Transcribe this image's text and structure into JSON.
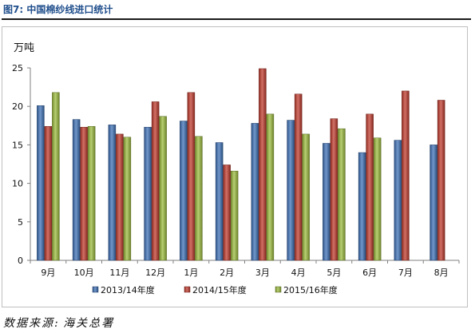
{
  "figure": {
    "title": "图7: 中国棉纱线进口统计",
    "source_label": "数据来源:",
    "source_value": "海关总署"
  },
  "chart_data": {
    "type": "bar",
    "title": "",
    "ylabel": "万吨",
    "xlabel": "",
    "ylim": [
      0,
      25
    ],
    "yticks": [
      0,
      5,
      10,
      15,
      20,
      25
    ],
    "grid": false,
    "legend_position": "bottom",
    "categories": [
      "9月",
      "10月",
      "11月",
      "12月",
      "1月",
      "2月",
      "3月",
      "4月",
      "5月",
      "6月",
      "7月",
      "8月"
    ],
    "series": [
      {
        "name": "2013/14年度",
        "color": "#3b6fb6",
        "values": [
          20.1,
          18.3,
          17.6,
          17.3,
          18.1,
          15.3,
          17.8,
          18.2,
          15.2,
          14.0,
          15.6,
          15.0
        ]
      },
      {
        "name": "2014/15年度",
        "color": "#c0392b",
        "values": [
          17.4,
          17.3,
          16.4,
          20.6,
          21.8,
          12.4,
          24.9,
          21.6,
          18.4,
          19.0,
          22.0,
          20.8
        ]
      },
      {
        "name": "2015/16年度",
        "color": "#9bbb3b",
        "values": [
          21.8,
          17.4,
          16.0,
          18.7,
          16.1,
          11.6,
          19.0,
          16.4,
          17.1,
          15.9,
          null,
          null
        ]
      }
    ]
  }
}
